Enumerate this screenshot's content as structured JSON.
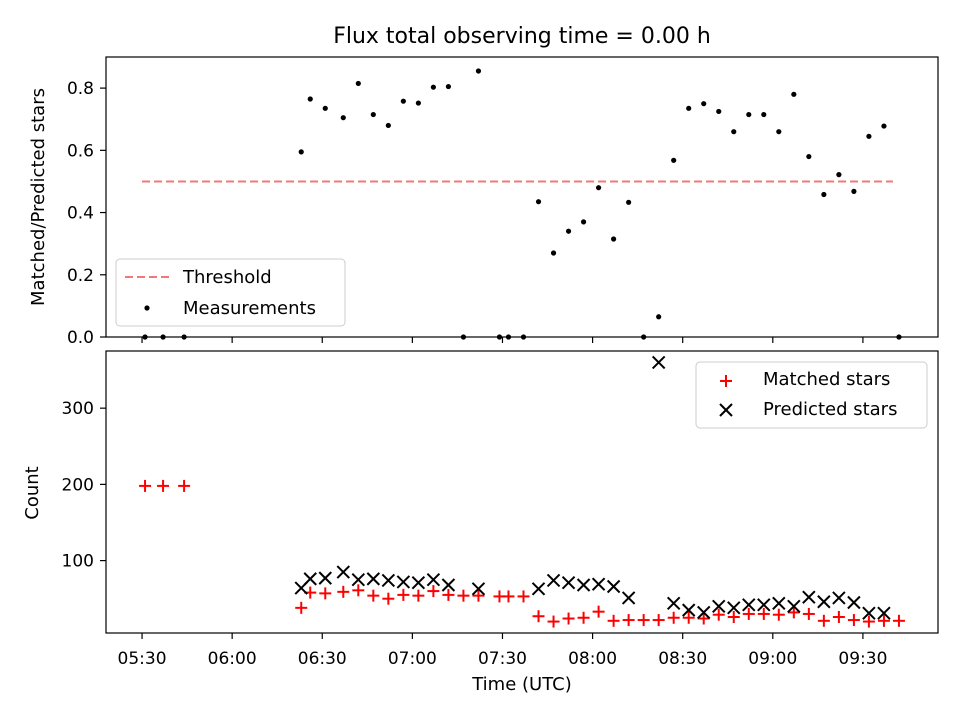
{
  "figure_title": "Flux total observing time = 0.00 h",
  "chart_data": [
    {
      "type": "scatter",
      "title": "Flux total observing time = 0.00 h",
      "xlabel": "",
      "ylabel": "Matched/Predicted stars",
      "x_range_minutes": [
        318,
        595
      ],
      "ylim": [
        0.0,
        0.9
      ],
      "yticks": [
        0.0,
        0.2,
        0.4,
        0.6,
        0.8
      ],
      "ytick_labels": [
        "0.0",
        "0.2",
        "0.4",
        "0.6",
        "0.8"
      ],
      "legend_position": "lower-left",
      "threshold": {
        "name": "Threshold",
        "value": 0.5,
        "x_start": "05:30",
        "x_end": "09:40",
        "color": "#f07878",
        "style": "dashed"
      },
      "series": [
        {
          "name": "Measurements",
          "color": "#000000",
          "marker": "dot",
          "points": [
            [
              "05:31",
              0.0
            ],
            [
              "05:37",
              0.0
            ],
            [
              "05:44",
              0.0
            ],
            [
              "06:23",
              0.595
            ],
            [
              "06:26",
              0.765
            ],
            [
              "06:31",
              0.735
            ],
            [
              "06:37",
              0.705
            ],
            [
              "06:42",
              0.815
            ],
            [
              "06:47",
              0.715
            ],
            [
              "06:52",
              0.68
            ],
            [
              "06:57",
              0.758
            ],
            [
              "07:02",
              0.752
            ],
            [
              "07:07",
              0.803
            ],
            [
              "07:12",
              0.805
            ],
            [
              "07:17",
              0.0
            ],
            [
              "07:22",
              0.855
            ],
            [
              "07:29",
              0.0
            ],
            [
              "07:32",
              0.0
            ],
            [
              "07:37",
              0.0
            ],
            [
              "07:42",
              0.435
            ],
            [
              "07:47",
              0.27
            ],
            [
              "07:52",
              0.34
            ],
            [
              "07:57",
              0.37
            ],
            [
              "08:02",
              0.48
            ],
            [
              "08:07",
              0.315
            ],
            [
              "08:12",
              0.433
            ],
            [
              "08:17",
              0.0
            ],
            [
              "08:22",
              0.065
            ],
            [
              "08:27",
              0.568
            ],
            [
              "08:32",
              0.735
            ],
            [
              "08:37",
              0.75
            ],
            [
              "08:42",
              0.725
            ],
            [
              "08:47",
              0.66
            ],
            [
              "08:52",
              0.715
            ],
            [
              "08:57",
              0.715
            ],
            [
              "09:02",
              0.66
            ],
            [
              "09:07",
              0.78
            ],
            [
              "09:12",
              0.58
            ],
            [
              "09:17",
              0.458
            ],
            [
              "09:22",
              0.522
            ],
            [
              "09:27",
              0.468
            ],
            [
              "09:32",
              0.645
            ],
            [
              "09:37",
              0.678
            ],
            [
              "09:42",
              0.0
            ]
          ]
        }
      ]
    },
    {
      "type": "scatter",
      "title": "",
      "xlabel": "Time (UTC)",
      "ylabel": "Count",
      "x_range_minutes": [
        318,
        595
      ],
      "ylim": [
        5,
        375
      ],
      "yticks": [
        100,
        200,
        300
      ],
      "ytick_labels": [
        "100",
        "200",
        "300"
      ],
      "xticks": [
        "05:30",
        "06:00",
        "06:30",
        "07:00",
        "07:30",
        "08:00",
        "08:30",
        "09:00",
        "09:30"
      ],
      "legend_position": "upper-right",
      "series": [
        {
          "name": "Matched stars",
          "color": "#ff0000",
          "marker": "plus",
          "points": [
            [
              "05:31",
              198
            ],
            [
              "05:37",
              198
            ],
            [
              "05:44",
              198
            ],
            [
              "06:23",
              38
            ],
            [
              "06:26",
              58
            ],
            [
              "06:31",
              57
            ],
            [
              "06:37",
              59
            ],
            [
              "06:42",
              61
            ],
            [
              "06:47",
              54
            ],
            [
              "06:52",
              50
            ],
            [
              "06:57",
              55
            ],
            [
              "07:02",
              54
            ],
            [
              "07:07",
              60
            ],
            [
              "07:12",
              55
            ],
            [
              "07:17",
              54
            ],
            [
              "07:22",
              54
            ],
            [
              "07:29",
              53
            ],
            [
              "07:32",
              53
            ],
            [
              "07:37",
              53
            ],
            [
              "07:42",
              27
            ],
            [
              "07:47",
              20
            ],
            [
              "07:52",
              24
            ],
            [
              "07:57",
              25
            ],
            [
              "08:02",
              33
            ],
            [
              "08:07",
              21
            ],
            [
              "08:12",
              22
            ],
            [
              "08:17",
              22
            ],
            [
              "08:22",
              22
            ],
            [
              "08:27",
              25
            ],
            [
              "08:32",
              25
            ],
            [
              "08:37",
              24
            ],
            [
              "08:42",
              29
            ],
            [
              "08:47",
              26
            ],
            [
              "08:52",
              30
            ],
            [
              "08:57",
              30
            ],
            [
              "09:02",
              29
            ],
            [
              "09:07",
              32
            ],
            [
              "09:12",
              30
            ],
            [
              "09:17",
              21
            ],
            [
              "09:22",
              26
            ],
            [
              "09:27",
              22
            ],
            [
              "09:32",
              20
            ],
            [
              "09:37",
              21
            ],
            [
              "09:42",
              21
            ]
          ]
        },
        {
          "name": "Predicted stars",
          "color": "#000000",
          "marker": "x",
          "points": [
            [
              "06:23",
              64
            ],
            [
              "06:26",
              76
            ],
            [
              "06:31",
              77
            ],
            [
              "06:37",
              85
            ],
            [
              "06:42",
              75
            ],
            [
              "06:47",
              76
            ],
            [
              "06:52",
              74
            ],
            [
              "06:57",
              72
            ],
            [
              "07:02",
              71
            ],
            [
              "07:07",
              75
            ],
            [
              "07:12",
              68
            ],
            [
              "07:22",
              63
            ],
            [
              "07:42",
              63
            ],
            [
              "07:47",
              74
            ],
            [
              "07:52",
              71
            ],
            [
              "07:57",
              68
            ],
            [
              "08:02",
              69
            ],
            [
              "08:07",
              66
            ],
            [
              "08:12",
              51
            ],
            [
              "08:22",
              360
            ],
            [
              "08:27",
              44
            ],
            [
              "08:32",
              35
            ],
            [
              "08:37",
              32
            ],
            [
              "08:42",
              40
            ],
            [
              "08:47",
              38
            ],
            [
              "08:52",
              42
            ],
            [
              "08:57",
              42
            ],
            [
              "09:02",
              44
            ],
            [
              "09:07",
              40
            ],
            [
              "09:12",
              52
            ],
            [
              "09:17",
              46
            ],
            [
              "09:22",
              51
            ],
            [
              "09:27",
              45
            ],
            [
              "09:32",
              31
            ],
            [
              "09:37",
              31
            ]
          ]
        }
      ]
    }
  ]
}
